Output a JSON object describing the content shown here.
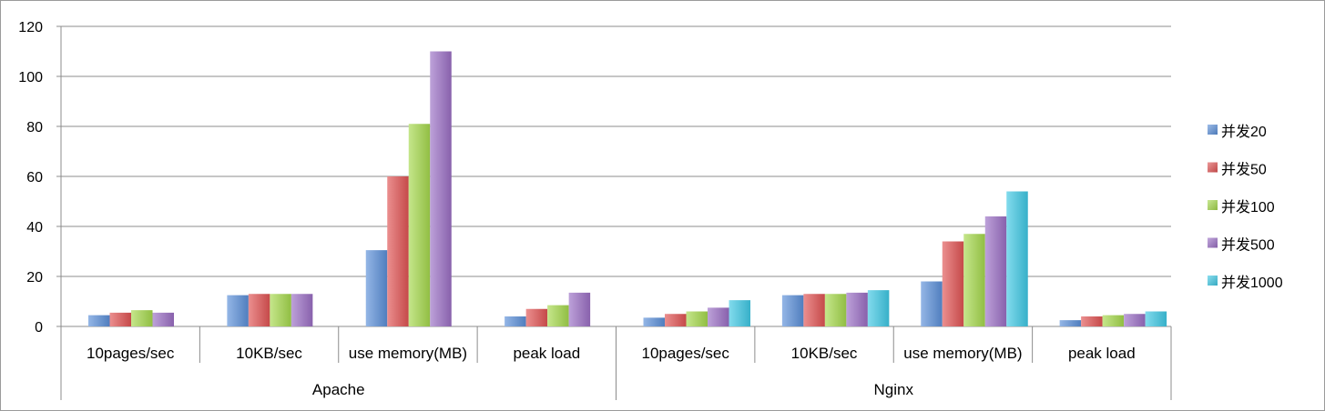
{
  "chart_data": {
    "type": "bar",
    "groups": [
      {
        "label": "Apache",
        "categories": [
          "10pages/sec",
          "10KB/sec",
          "use memory(MB)",
          "peak load"
        ]
      },
      {
        "label": "Nginx",
        "categories": [
          "10pages/sec",
          "10KB/sec",
          "use memory(MB)",
          "peak load"
        ]
      }
    ],
    "series": [
      {
        "name": "并发20",
        "color": "#5b8fd8",
        "values": [
          4.5,
          12.5,
          30.5,
          4,
          3.5,
          12.5,
          18,
          2.5
        ]
      },
      {
        "name": "并发50",
        "color": "#e05353",
        "values": [
          5.5,
          13,
          60,
          7,
          5,
          13,
          34,
          4
        ]
      },
      {
        "name": "并发100",
        "color": "#a5d84c",
        "values": [
          6.5,
          13,
          81,
          8.5,
          6,
          13,
          37,
          4.5
        ]
      },
      {
        "name": "并发500",
        "color": "#9a6ec4",
        "values": [
          5.5,
          13,
          110,
          13.5,
          7.5,
          13.5,
          44,
          5
        ]
      },
      {
        "name": "并发1000",
        "color": "#3fc8e4",
        "values": [
          null,
          null,
          null,
          null,
          10.5,
          14.5,
          54,
          6
        ]
      }
    ],
    "ylim": [
      0,
      120
    ],
    "yticks": [
      0,
      20,
      40,
      60,
      80,
      100,
      120
    ],
    "grid": true,
    "legend": "right"
  }
}
